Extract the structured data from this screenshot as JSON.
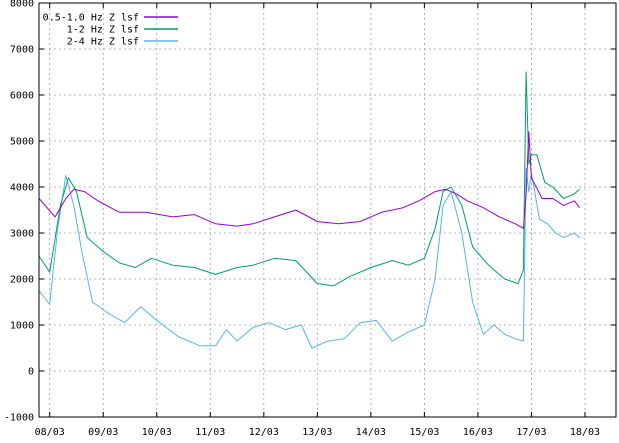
{
  "chart_data": {
    "type": "line",
    "title": "",
    "xlabel": "",
    "ylabel": "",
    "xlim": [
      0,
      10.78
    ],
    "ylim": [
      -1000,
      8000
    ],
    "y_ticks": [
      -1000,
      0,
      1000,
      2000,
      3000,
      4000,
      5000,
      6000,
      7000,
      8000
    ],
    "x_tick_labels": [
      "08/03",
      "09/03",
      "10/03",
      "11/03",
      "12/03",
      "13/03",
      "14/03",
      "15/03",
      "16/03",
      "17/03",
      "18/03"
    ],
    "x_tick_values": [
      0.2,
      1.2,
      2.2,
      3.2,
      4.2,
      5.2,
      6.2,
      7.2,
      8.2,
      9.2,
      10.2
    ],
    "grid": true,
    "legend_position": "top-left",
    "series": [
      {
        "name": "0.5-1.0 Hz Z lsf",
        "color": "#9400d3",
        "x": [
          0,
          0.3,
          0.5,
          0.65,
          0.85,
          1.1,
          1.5,
          2.0,
          2.5,
          2.9,
          3.3,
          3.7,
          4.0,
          4.4,
          4.8,
          5.2,
          5.6,
          6.0,
          6.4,
          6.8,
          7.1,
          7.4,
          7.6,
          7.8,
          8.0,
          8.3,
          8.6,
          8.9,
          9.05,
          9.1,
          9.15,
          9.2,
          9.4,
          9.6,
          9.8,
          10.0,
          10.1
        ],
        "values": [
          3750,
          3350,
          3750,
          3950,
          3900,
          3700,
          3450,
          3450,
          3350,
          3400,
          3200,
          3150,
          3200,
          3350,
          3500,
          3250,
          3200,
          3250,
          3450,
          3550,
          3700,
          3900,
          3950,
          3850,
          3700,
          3550,
          3350,
          3200,
          3100,
          3850,
          5200,
          4200,
          3750,
          3750,
          3600,
          3700,
          3550
        ]
      },
      {
        "name": "1-2 Hz Z lsf",
        "color": "#009e73",
        "x": [
          0,
          0.2,
          0.4,
          0.55,
          0.7,
          0.9,
          1.2,
          1.5,
          1.8,
          2.1,
          2.5,
          2.9,
          3.3,
          3.7,
          4.0,
          4.4,
          4.8,
          5.2,
          5.5,
          5.8,
          6.2,
          6.6,
          6.9,
          7.2,
          7.4,
          7.55,
          7.7,
          7.9,
          8.1,
          8.4,
          8.7,
          8.95,
          9.05,
          9.1,
          9.15,
          9.2,
          9.3,
          9.45,
          9.6,
          9.8,
          10.0,
          10.1
        ],
        "values": [
          2500,
          2150,
          3600,
          4200,
          3900,
          2900,
          2600,
          2350,
          2250,
          2450,
          2300,
          2250,
          2100,
          2250,
          2300,
          2450,
          2400,
          1900,
          1850,
          2050,
          2250,
          2400,
          2300,
          2450,
          3100,
          3900,
          4000,
          3600,
          2700,
          2300,
          2000,
          1900,
          2200,
          6500,
          4500,
          4700,
          4700,
          4100,
          4000,
          3750,
          3850,
          3950
        ]
      },
      {
        "name": "2-4 Hz Z lsf",
        "color": "#56b4e9",
        "x": [
          0,
          0.2,
          0.35,
          0.5,
          0.65,
          0.8,
          1.0,
          1.3,
          1.6,
          1.9,
          2.2,
          2.6,
          3.0,
          3.3,
          3.5,
          3.7,
          4.0,
          4.3,
          4.6,
          4.9,
          5.1,
          5.4,
          5.7,
          6.0,
          6.3,
          6.6,
          6.9,
          7.2,
          7.4,
          7.55,
          7.7,
          7.9,
          8.1,
          8.3,
          8.5,
          8.7,
          8.9,
          9.05,
          9.1,
          9.15,
          9.2,
          9.35,
          9.5,
          9.65,
          9.8,
          10.0,
          10.1
        ],
        "values": [
          1750,
          1450,
          3100,
          4250,
          3600,
          2600,
          1500,
          1250,
          1050,
          1400,
          1100,
          750,
          550,
          550,
          900,
          650,
          950,
          1050,
          900,
          1000,
          500,
          650,
          700,
          1050,
          1100,
          650,
          850,
          1000,
          2000,
          3600,
          3900,
          3000,
          1500,
          800,
          1000,
          800,
          700,
          650,
          4400,
          3900,
          4300,
          3300,
          3200,
          3000,
          2900,
          3000,
          2900
        ]
      }
    ]
  }
}
